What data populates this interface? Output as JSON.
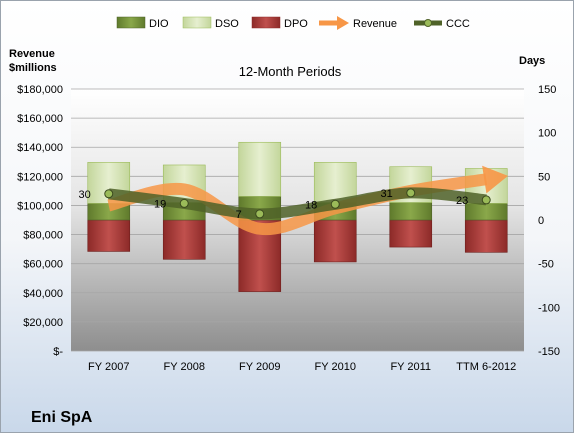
{
  "chart_data": {
    "type": "bar",
    "title": "12-Month Periods",
    "company": "Eni SpA",
    "left_axis_label": [
      "Revenue",
      "$millions"
    ],
    "right_axis_label": "Days",
    "categories": [
      "FY 2007",
      "FY 2008",
      "FY 2009",
      "FY 2010",
      "FY 2011",
      "TTM 6-2012"
    ],
    "left_ylim": [
      0,
      180000
    ],
    "left_ticks": [
      0,
      20000,
      40000,
      60000,
      80000,
      100000,
      120000,
      140000,
      160000,
      180000
    ],
    "left_tick_labels": [
      "$-",
      "$20,000",
      "$40,000",
      "$60,000",
      "$80,000",
      "$100,000",
      "$120,000",
      "$140,000",
      "$160,000",
      "$180,000"
    ],
    "right_ylim": [
      -150,
      150
    ],
    "right_ticks": [
      -150,
      -100,
      -50,
      0,
      50,
      100,
      150
    ],
    "right_tick_labels": [
      "-150",
      "-100",
      "-50",
      "0",
      "50",
      "100",
      "150"
    ],
    "series": [
      {
        "name": "DIO",
        "color": "#77933c",
        "values": [
          19,
          20,
          27,
          20,
          20,
          19
        ]
      },
      {
        "name": "DSO",
        "color": "#d7e4bd",
        "values": [
          47,
          43,
          62,
          46,
          41,
          40
        ]
      },
      {
        "name": "DPO",
        "color": "#c0504d",
        "values": [
          -36,
          -45,
          -82,
          -48,
          -31,
          -37
        ]
      },
      {
        "name": "Revenue",
        "color": "#f79646",
        "values": [
          100000,
          111000,
          84000,
          98000,
          110000,
          118000
        ]
      },
      {
        "name": "CCC",
        "color": "#4f6228",
        "values": [
          30,
          19,
          7,
          18,
          31,
          23
        ]
      }
    ],
    "ccc_labels": [
      "30",
      "19",
      "7",
      "18",
      "31",
      "23"
    ],
    "legend_position": "top"
  }
}
